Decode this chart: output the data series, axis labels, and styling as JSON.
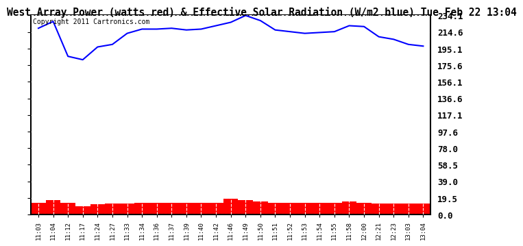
{
  "title": "West Array Power (watts red) & Effective Solar Radiation (W/m2 blue) Tue Feb 22 13:04",
  "copyright": "Copyright 2011 Cartronics.com",
  "bg_color": "#ffffff",
  "plot_bg_color": "#ffffff",
  "yticks": [
    0.0,
    19.5,
    39.0,
    58.5,
    78.0,
    97.6,
    117.1,
    136.6,
    156.1,
    175.6,
    195.1,
    214.6,
    234.1
  ],
  "xlabels": [
    "11:03",
    "11:04",
    "11:12",
    "11:17",
    "11:24",
    "11:27",
    "11:33",
    "11:34",
    "11:36",
    "11:37",
    "11:39",
    "11:40",
    "11:42",
    "11:46",
    "11:49",
    "11:50",
    "11:51",
    "11:52",
    "11:53",
    "11:54",
    "11:55",
    "11:58",
    "12:00",
    "12:21",
    "12:23",
    "13:03",
    "13:04"
  ],
  "blue_values": [
    219,
    227,
    186,
    182,
    197,
    200,
    213,
    218,
    218,
    219,
    217,
    218,
    222,
    226,
    234,
    228,
    217,
    215,
    213,
    214,
    215,
    222,
    221,
    209,
    206,
    200,
    198
  ],
  "red_values": [
    14,
    17,
    14,
    10,
    12,
    13,
    13,
    14,
    14,
    14,
    14,
    14,
    14,
    19,
    17,
    15,
    14,
    14,
    14,
    14,
    14,
    15,
    14,
    13,
    13,
    13,
    13
  ],
  "line_color": "#0000ff",
  "bar_color": "#ff0000",
  "grid_color": "#bbbbbb",
  "title_fontsize": 10.5,
  "copyright_fontsize": 7,
  "ylabel_right_fontsize": 9
}
